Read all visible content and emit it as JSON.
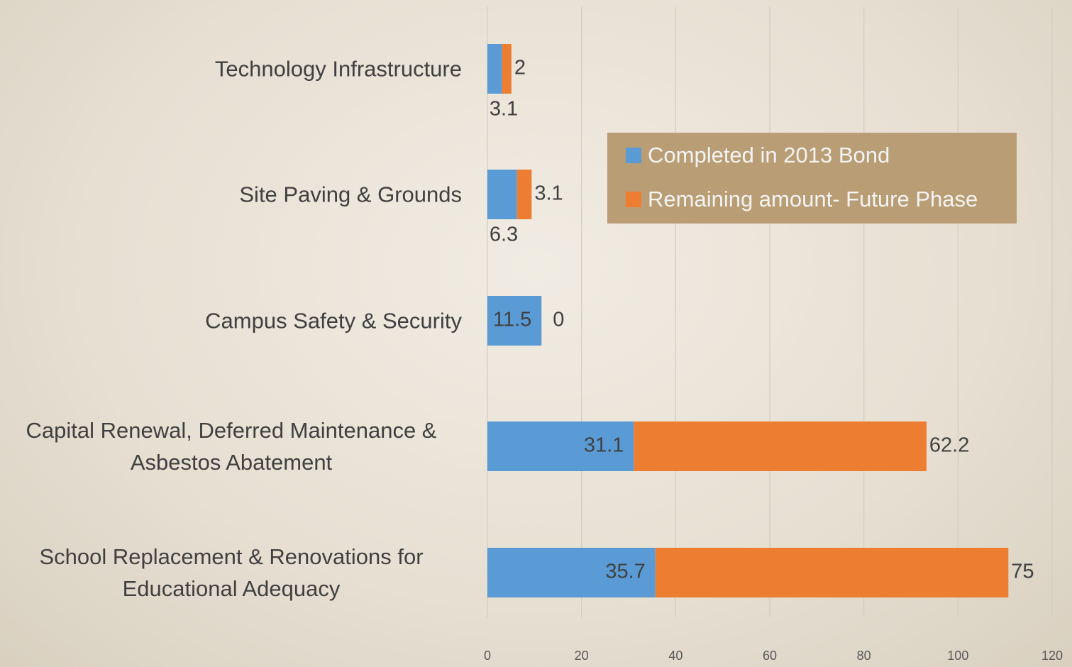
{
  "chart_data": {
    "type": "stacked_bar_horizontal",
    "categories": [
      "Technology Infrastructure",
      "Site Paving & Grounds",
      "Campus Safety & Security",
      "Capital Renewal, Deferred Maintenance & Asbestos Abatement",
      "School Replacement & Renovations for Educational Adequacy"
    ],
    "series": [
      {
        "name": "Completed in 2013 Bond",
        "color": "#5b9bd5",
        "values": [
          3.1,
          6.3,
          11.5,
          31.1,
          35.7
        ]
      },
      {
        "name": "Remaining amount- Future Phase",
        "color": "#ed7d31",
        "values": [
          2,
          3.1,
          0,
          62.2,
          75
        ]
      }
    ],
    "xlim": [
      0,
      120
    ],
    "xticks": [
      0,
      20,
      40,
      60,
      80,
      100,
      120
    ],
    "grid": true,
    "legend_position": "right"
  }
}
